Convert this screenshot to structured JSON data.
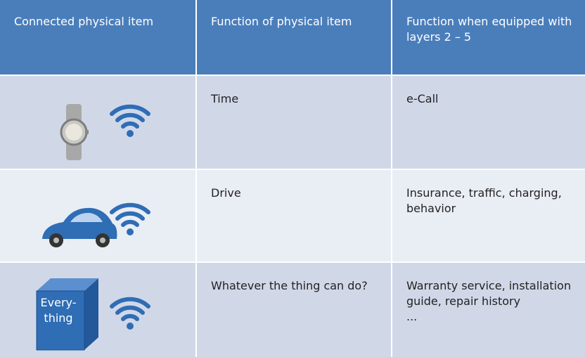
{
  "table": {
    "header": [
      "Connected physical item",
      "Function of physical item",
      "Function when equipped with layers 2 – 5"
    ],
    "rows": [
      [
        "Time",
        "e-Call"
      ],
      [
        "Drive",
        "Insurance, traffic, charging, behavior"
      ],
      [
        "Whatever the thing can do?",
        "Warranty service, installation guide, repair history\n..."
      ]
    ],
    "cube_label": "Every-\nthing"
  }
}
